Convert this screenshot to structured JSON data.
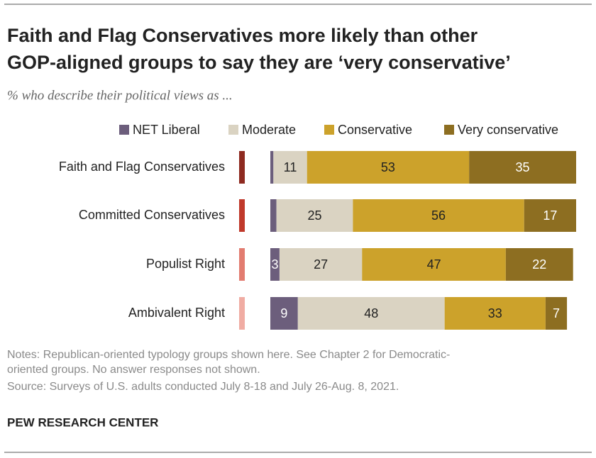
{
  "chart_data": {
    "type": "stacked-bar",
    "title": [
      "Faith and Flag Conservatives more likely than other",
      "GOP-aligned groups to say they are ‘very conservative’"
    ],
    "subtitle": "% who describe their political views as ...",
    "categories": [
      "Faith and Flag Conservatives",
      "Committed Conservatives",
      "Populist Right",
      "Ambivalent Right"
    ],
    "category_colors": [
      "#8e2a20",
      "#c0392b",
      "#e27c70",
      "#f0aca3"
    ],
    "series": [
      {
        "name": "NET Liberal",
        "color": "#6c5e7c",
        "label_color": "#ffffff",
        "values": [
          1,
          2,
          3,
          9
        ],
        "value_labels": [
          null,
          null,
          "3",
          "9"
        ]
      },
      {
        "name": "Moderate",
        "color": "#dad3c2",
        "label_color": "#222222",
        "values": [
          11,
          25,
          27,
          48
        ]
      },
      {
        "name": "Conservative",
        "color": "#cca22b",
        "label_color": "#222222",
        "values": [
          53,
          56,
          47,
          33
        ]
      },
      {
        "name": "Very conservative",
        "color": "#8d6e21",
        "label_color": "#ffffff",
        "values": [
          35,
          17,
          22,
          7
        ]
      }
    ],
    "xlim": [
      0,
      100
    ],
    "notes": [
      "Notes: Republican-oriented typology groups shown here. See Chapter 2 for Democratic-",
      "oriented groups. No answer responses not shown."
    ],
    "source": "Source: Surveys of U.S. adults conducted July 8-18 and July 26-Aug. 8, 2021.",
    "credit": "PEW RESEARCH CENTER"
  }
}
